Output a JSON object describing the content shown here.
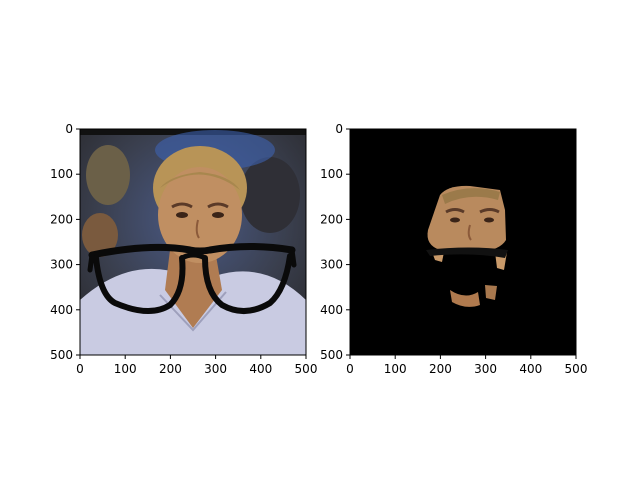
{
  "figure": {
    "panels": [
      {
        "name": "left-panel",
        "image": "face-photo-with-glasses",
        "x_ticks": [
          "0",
          "100",
          "200",
          "300",
          "400",
          "500"
        ],
        "y_ticks": [
          "0",
          "100",
          "200",
          "300",
          "400",
          "500"
        ]
      },
      {
        "name": "right-panel",
        "image": "face-mask-on-black",
        "x_ticks": [
          "0",
          "100",
          "200",
          "300",
          "400",
          "500"
        ],
        "y_ticks": [
          "0",
          "100",
          "200",
          "300",
          "400",
          "500"
        ]
      }
    ]
  },
  "colors": {
    "background": "#ffffff",
    "mask_background": "#000000",
    "skin": "#b98a5e",
    "hair": "#b89457",
    "shirt": "#c9cbe2"
  }
}
